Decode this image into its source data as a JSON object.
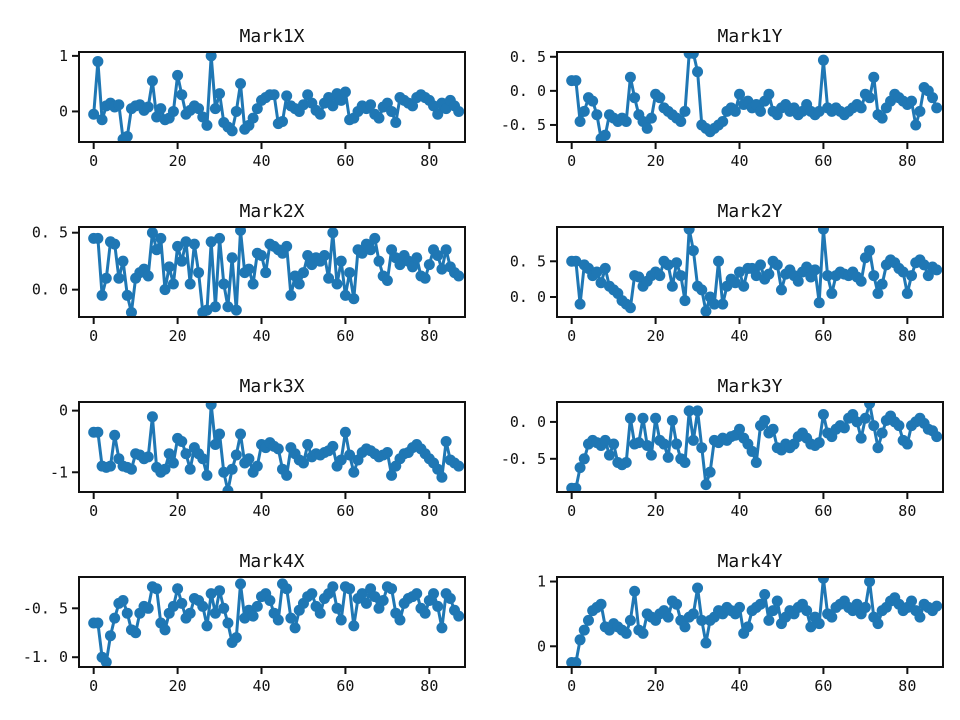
{
  "figure": {
    "background": "#ffffff",
    "series_color": "#1f77b4",
    "axis_color": "#111111",
    "text_color": "#111111",
    "marker": "circle",
    "marker_radius": 5.5,
    "line_width": 3,
    "grid": "off",
    "legend": "none",
    "rows": 4,
    "cols": 2
  },
  "chart_data": [
    {
      "type": "line",
      "title": "Mark1X",
      "x_start": 0,
      "x_step": 1,
      "xlim": [
        -3.5,
        88.5
      ],
      "ylim": [
        -0.55,
        1.07
      ],
      "xticks": [
        0,
        20,
        40,
        60,
        80
      ],
      "xtick_labels": [
        "0",
        "20",
        "40",
        "60",
        "80"
      ],
      "yticks": [
        0,
        1
      ],
      "ytick_labels": [
        "0",
        "1"
      ],
      "values": [
        -0.05,
        0.9,
        -0.15,
        0.1,
        0.15,
        0.08,
        0.12,
        -0.5,
        -0.45,
        0.05,
        0.1,
        0.12,
        0.02,
        0.08,
        0.55,
        -0.1,
        0.05,
        -0.15,
        -0.12,
        0.0,
        0.65,
        0.3,
        -0.05,
        0.02,
        0.1,
        0.05,
        -0.1,
        -0.25,
        1.0,
        0.05,
        0.32,
        -0.2,
        -0.28,
        -0.35,
        0.0,
        0.5,
        -0.32,
        -0.25,
        -0.12,
        0.05,
        0.2,
        0.25,
        0.3,
        0.3,
        -0.22,
        -0.18,
        0.28,
        0.1,
        0.05,
        0.0,
        0.12,
        0.3,
        0.15,
        0.02,
        -0.05,
        0.15,
        0.25,
        0.1,
        0.32,
        0.2,
        0.35,
        -0.15,
        -0.12,
        0.0,
        0.1,
        0.05,
        0.12,
        -0.05,
        -0.12,
        0.08,
        0.15,
        0.0,
        -0.2,
        0.25,
        0.2,
        0.15,
        0.1,
        0.25,
        0.3,
        0.25,
        0.2,
        0.1,
        -0.05,
        0.15,
        0.05,
        0.2,
        0.1,
        0.0
      ]
    },
    {
      "type": "line",
      "title": "Mark1Y",
      "x_start": 0,
      "x_step": 1,
      "xlim": [
        -3.5,
        88.5
      ],
      "ylim": [
        -0.75,
        0.57
      ],
      "xticks": [
        0,
        20,
        40,
        60,
        80
      ],
      "xtick_labels": [
        "0",
        "20",
        "40",
        "60",
        "80"
      ],
      "yticks": [
        -0.5,
        0.0,
        0.5
      ],
      "ytick_labels": [
        "-0. 5",
        "0. 0",
        "0. 5"
      ],
      "values": [
        0.15,
        0.15,
        -0.45,
        -0.3,
        -0.1,
        -0.15,
        -0.35,
        -0.7,
        -0.65,
        -0.35,
        -0.4,
        -0.45,
        -0.4,
        -0.45,
        0.2,
        -0.1,
        -0.35,
        -0.45,
        -0.55,
        -0.4,
        -0.05,
        -0.1,
        -0.25,
        -0.3,
        -0.35,
        -0.4,
        -0.45,
        -0.3,
        0.55,
        0.55,
        0.28,
        -0.5,
        -0.55,
        -0.6,
        -0.55,
        -0.5,
        -0.45,
        -0.3,
        -0.25,
        -0.3,
        -0.05,
        -0.2,
        -0.15,
        -0.25,
        -0.2,
        -0.3,
        -0.15,
        -0.05,
        -0.3,
        -0.35,
        -0.25,
        -0.2,
        -0.3,
        -0.25,
        -0.35,
        -0.3,
        -0.2,
        -0.3,
        -0.35,
        -0.3,
        0.45,
        -0.25,
        -0.3,
        -0.25,
        -0.3,
        -0.35,
        -0.3,
        -0.25,
        -0.2,
        -0.25,
        -0.05,
        -0.1,
        0.2,
        -0.35,
        -0.4,
        -0.25,
        -0.15,
        -0.05,
        -0.1,
        -0.15,
        -0.2,
        -0.15,
        -0.5,
        -0.3,
        0.05,
        0.0,
        -0.1,
        -0.25
      ]
    },
    {
      "type": "line",
      "title": "Mark2X",
      "x_start": 0,
      "x_step": 1,
      "xlim": [
        -3.5,
        88.5
      ],
      "ylim": [
        -0.24,
        0.55
      ],
      "xticks": [
        0,
        20,
        40,
        60,
        80
      ],
      "xtick_labels": [
        "0",
        "20",
        "40",
        "60",
        "80"
      ],
      "yticks": [
        0.0,
        0.5
      ],
      "ytick_labels": [
        "0. 0",
        "0. 5"
      ],
      "values": [
        0.45,
        0.45,
        -0.05,
        0.1,
        0.42,
        0.4,
        0.1,
        0.25,
        -0.05,
        -0.2,
        0.1,
        0.15,
        0.18,
        0.12,
        0.5,
        0.35,
        0.45,
        0.0,
        0.2,
        0.05,
        0.38,
        0.25,
        0.42,
        0.05,
        0.4,
        0.15,
        -0.2,
        -0.18,
        0.42,
        -0.15,
        0.45,
        0.05,
        -0.15,
        0.28,
        -0.18,
        0.52,
        0.15,
        0.18,
        0.05,
        0.32,
        0.3,
        0.15,
        0.4,
        0.38,
        0.35,
        0.32,
        0.38,
        -0.05,
        0.12,
        0.05,
        0.15,
        0.3,
        0.22,
        0.28,
        0.25,
        0.3,
        0.1,
        0.5,
        0.05,
        0.25,
        -0.05,
        0.15,
        -0.08,
        0.35,
        0.32,
        0.4,
        0.35,
        0.45,
        0.25,
        0.12,
        0.08,
        0.35,
        0.28,
        0.22,
        0.3,
        0.25,
        0.2,
        0.28,
        0.12,
        0.1,
        0.22,
        0.35,
        0.3,
        0.18,
        0.35,
        0.2,
        0.15,
        0.12
      ]
    },
    {
      "type": "line",
      "title": "Mark2Y",
      "x_start": 0,
      "x_step": 1,
      "xlim": [
        -3.5,
        88.5
      ],
      "ylim": [
        -0.28,
        0.98
      ],
      "xticks": [
        0,
        20,
        40,
        60,
        80
      ],
      "xtick_labels": [
        "0",
        "20",
        "40",
        "60",
        "80"
      ],
      "yticks": [
        0.0,
        0.5
      ],
      "ytick_labels": [
        "0. 0",
        "0. 5"
      ],
      "values": [
        0.5,
        0.5,
        -0.1,
        0.45,
        0.4,
        0.3,
        0.35,
        0.2,
        0.4,
        0.15,
        0.1,
        0.05,
        -0.05,
        -0.1,
        -0.15,
        0.3,
        0.28,
        0.15,
        0.22,
        0.3,
        0.35,
        0.3,
        0.5,
        0.45,
        0.15,
        0.48,
        0.3,
        -0.05,
        0.95,
        0.65,
        0.15,
        0.1,
        -0.2,
        0.0,
        -0.1,
        0.5,
        -0.1,
        0.15,
        0.25,
        0.2,
        0.35,
        0.15,
        0.4,
        0.4,
        0.3,
        0.45,
        0.25,
        0.32,
        0.5,
        0.45,
        0.1,
        0.32,
        0.38,
        0.3,
        0.22,
        0.35,
        0.42,
        0.28,
        0.38,
        -0.08,
        0.95,
        0.3,
        0.05,
        0.3,
        0.35,
        0.32,
        0.3,
        0.35,
        0.28,
        0.22,
        0.55,
        0.65,
        0.3,
        0.05,
        0.18,
        0.45,
        0.52,
        0.48,
        0.4,
        0.35,
        0.05,
        0.3,
        0.48,
        0.52,
        0.45,
        0.3,
        0.42,
        0.38
      ]
    },
    {
      "type": "line",
      "title": "Mark3X",
      "x_start": 0,
      "x_step": 1,
      "xlim": [
        -3.5,
        88.5
      ],
      "ylim": [
        -1.32,
        0.14
      ],
      "xticks": [
        0,
        20,
        40,
        60,
        80
      ],
      "xtick_labels": [
        "0",
        "20",
        "40",
        "60",
        "80"
      ],
      "yticks": [
        -1,
        0
      ],
      "ytick_labels": [
        "-1",
        "0"
      ],
      "values": [
        -0.35,
        -0.35,
        -0.9,
        -0.92,
        -0.9,
        -0.4,
        -0.78,
        -0.9,
        -0.92,
        -0.95,
        -0.7,
        -0.72,
        -0.78,
        -0.75,
        -0.1,
        -0.92,
        -1.0,
        -0.95,
        -0.7,
        -0.85,
        -0.45,
        -0.5,
        -0.7,
        -0.95,
        -0.6,
        -0.7,
        -0.78,
        -1.05,
        0.1,
        -0.55,
        -0.38,
        -1.0,
        -1.3,
        -0.95,
        -0.72,
        -0.38,
        -0.85,
        -0.78,
        -1.0,
        -0.9,
        -0.55,
        -0.6,
        -0.52,
        -0.58,
        -0.62,
        -0.95,
        -1.05,
        -0.6,
        -0.7,
        -0.8,
        -0.85,
        -0.55,
        -0.75,
        -0.7,
        -0.72,
        -0.68,
        -0.65,
        -0.58,
        -0.9,
        -0.8,
        -0.35,
        -0.72,
        -1.0,
        -0.8,
        -0.68,
        -0.62,
        -0.65,
        -0.7,
        -0.75,
        -0.72,
        -0.68,
        -1.05,
        -0.9,
        -0.78,
        -0.7,
        -0.68,
        -0.6,
        -0.55,
        -0.62,
        -0.7,
        -0.78,
        -0.85,
        -0.95,
        -1.08,
        -0.5,
        -0.8,
        -0.85,
        -0.9
      ]
    },
    {
      "type": "line",
      "title": "Mark3Y",
      "x_start": 0,
      "x_step": 1,
      "xlim": [
        -3.5,
        88.5
      ],
      "ylim": [
        -0.95,
        0.27
      ],
      "xticks": [
        0,
        20,
        40,
        60,
        80
      ],
      "xtick_labels": [
        "0",
        "20",
        "40",
        "60",
        "80"
      ],
      "yticks": [
        -0.5,
        0.0
      ],
      "ytick_labels": [
        "-0. 5",
        "0. 0"
      ],
      "values": [
        -0.9,
        -0.9,
        -0.62,
        -0.5,
        -0.3,
        -0.25,
        -0.28,
        -0.32,
        -0.25,
        -0.45,
        -0.3,
        -0.55,
        -0.58,
        -0.55,
        0.05,
        -0.3,
        -0.28,
        0.05,
        -0.32,
        -0.45,
        0.05,
        -0.25,
        -0.3,
        -0.48,
        0.02,
        -0.3,
        -0.5,
        -0.55,
        0.15,
        -0.25,
        0.15,
        -0.35,
        -0.85,
        -0.68,
        -0.25,
        -0.28,
        -0.22,
        -0.25,
        -0.2,
        -0.18,
        -0.1,
        -0.22,
        -0.3,
        -0.4,
        -0.55,
        -0.05,
        0.02,
        -0.15,
        -0.1,
        -0.35,
        -0.38,
        -0.3,
        -0.35,
        -0.3,
        -0.2,
        -0.15,
        -0.22,
        -0.3,
        -0.32,
        -0.28,
        0.1,
        -0.15,
        -0.2,
        -0.1,
        -0.05,
        -0.08,
        0.05,
        0.1,
        0.0,
        -0.22,
        0.05,
        0.25,
        -0.05,
        -0.35,
        -0.15,
        0.02,
        0.08,
        0.0,
        -0.05,
        -0.25,
        -0.3,
        -0.05,
        0.0,
        0.05,
        -0.02,
        -0.1,
        -0.12,
        -0.2
      ]
    },
    {
      "type": "line",
      "title": "Mark4X",
      "x_start": 0,
      "x_step": 1,
      "xlim": [
        -3.5,
        88.5
      ],
      "ylim": [
        -1.1,
        -0.18
      ],
      "xticks": [
        0,
        20,
        40,
        60,
        80
      ],
      "xtick_labels": [
        "0",
        "20",
        "40",
        "60",
        "80"
      ],
      "yticks": [
        -1.0,
        -0.5
      ],
      "ytick_labels": [
        "-1. 0",
        "-0. 5"
      ],
      "values": [
        -0.65,
        -0.65,
        -1.0,
        -1.05,
        -0.78,
        -0.6,
        -0.45,
        -0.42,
        -0.55,
        -0.72,
        -0.75,
        -0.55,
        -0.48,
        -0.5,
        -0.28,
        -0.3,
        -0.65,
        -0.72,
        -0.55,
        -0.48,
        -0.3,
        -0.45,
        -0.6,
        -0.55,
        -0.4,
        -0.42,
        -0.48,
        -0.68,
        -0.35,
        -0.55,
        -0.32,
        -0.5,
        -0.65,
        -0.85,
        -0.8,
        -0.25,
        -0.6,
        -0.52,
        -0.58,
        -0.48,
        -0.38,
        -0.35,
        -0.42,
        -0.55,
        -0.62,
        -0.25,
        -0.3,
        -0.6,
        -0.7,
        -0.52,
        -0.45,
        -0.38,
        -0.35,
        -0.48,
        -0.55,
        -0.4,
        -0.35,
        -0.28,
        -0.5,
        -0.62,
        -0.28,
        -0.3,
        -0.68,
        -0.4,
        -0.35,
        -0.45,
        -0.3,
        -0.38,
        -0.5,
        -0.42,
        -0.28,
        -0.3,
        -0.55,
        -0.62,
        -0.45,
        -0.4,
        -0.38,
        -0.35,
        -0.5,
        -0.55,
        -0.42,
        -0.35,
        -0.48,
        -0.7,
        -0.35,
        -0.4,
        -0.52,
        -0.58
      ]
    },
    {
      "type": "line",
      "title": "Mark4Y",
      "x_start": 0,
      "x_step": 1,
      "xlim": [
        -3.5,
        88.5
      ],
      "ylim": [
        -0.32,
        1.07
      ],
      "xticks": [
        0,
        20,
        40,
        60,
        80
      ],
      "xtick_labels": [
        "0",
        "20",
        "40",
        "60",
        "80"
      ],
      "yticks": [
        0,
        1
      ],
      "ytick_labels": [
        "0",
        "1"
      ],
      "values": [
        -0.25,
        -0.25,
        0.1,
        0.25,
        0.4,
        0.55,
        0.6,
        0.65,
        0.3,
        0.25,
        0.35,
        0.3,
        0.25,
        0.2,
        0.4,
        0.85,
        0.25,
        0.2,
        0.5,
        0.45,
        0.4,
        0.5,
        0.55,
        0.45,
        0.7,
        0.65,
        0.4,
        0.3,
        0.45,
        0.5,
        0.9,
        0.4,
        0.05,
        0.4,
        0.45,
        0.55,
        0.5,
        0.6,
        0.55,
        0.5,
        0.6,
        0.2,
        0.3,
        0.55,
        0.6,
        0.65,
        0.8,
        0.4,
        0.55,
        0.7,
        0.35,
        0.45,
        0.55,
        0.5,
        0.6,
        0.65,
        0.55,
        0.3,
        0.45,
        0.35,
        1.05,
        0.5,
        0.45,
        0.6,
        0.65,
        0.7,
        0.6,
        0.55,
        0.65,
        0.5,
        0.6,
        1.0,
        0.45,
        0.35,
        0.55,
        0.6,
        0.7,
        0.75,
        0.65,
        0.55,
        0.6,
        0.7,
        0.55,
        0.45,
        0.65,
        0.6,
        0.55,
        0.62
      ]
    }
  ]
}
